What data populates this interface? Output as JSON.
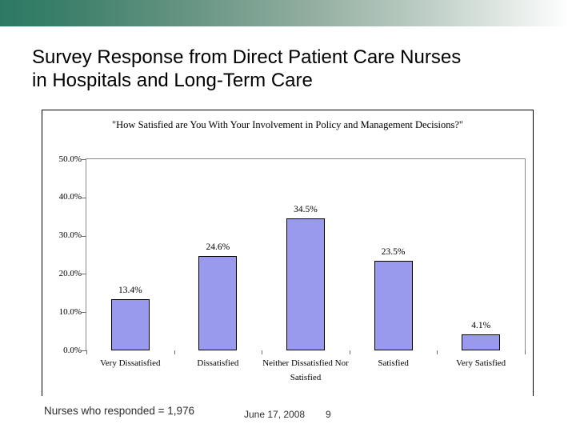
{
  "slide": {
    "title_line1": "Survey Response from Direct Patient Care Nurses",
    "title_line2": "in Hospitals and Long-Term Care",
    "footer_note": "Nurses who responded = 1,976",
    "footer_date": "June 17, 2008",
    "footer_page": "9"
  },
  "colors": {
    "banner_green": "#2c7963",
    "bar_fill": "#9999ee",
    "bar_border": "#000000",
    "plot_frame_gray": "#8a8a8a"
  },
  "chart_data": {
    "type": "bar",
    "title": "\"How Satisfied are You With Your Involvement in Policy and Management Decisions?\"",
    "categories": [
      "Very Dissatisfied",
      "Dissatisfied",
      "Neither Dissatisfied Nor Satisfied",
      "Satisfied",
      "Very Satisfied"
    ],
    "values": [
      13.4,
      24.6,
      34.5,
      23.5,
      4.1
    ],
    "value_labels": [
      "13.4%",
      "24.6%",
      "34.5%",
      "23.5%",
      "4.1%"
    ],
    "y_ticks": [
      "50.0%",
      "40.0%",
      "30.0%",
      "20.0%",
      "10.0%",
      "0.0%"
    ],
    "ylim": [
      0,
      50
    ],
    "xlabel": "",
    "ylabel": "",
    "grid": false,
    "legend": false
  }
}
